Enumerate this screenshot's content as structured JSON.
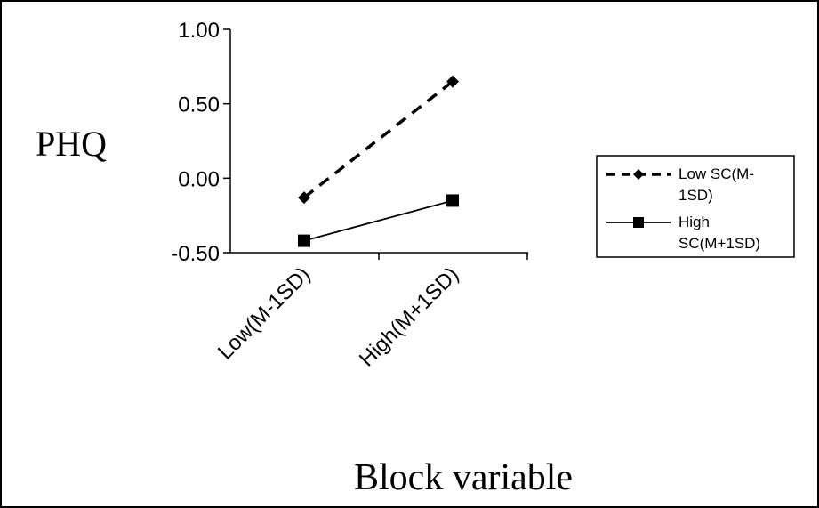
{
  "chart_data": {
    "type": "line",
    "title": "",
    "xlabel": "Block variable",
    "ylabel": "PHQ",
    "categories": [
      "Low(M-1SD)",
      "High(M+1SD)"
    ],
    "yticks": [
      "1.00",
      "0.50",
      "0.00",
      "-0.50"
    ],
    "ylim": [
      -0.5,
      1.0
    ],
    "grid": false,
    "legend_position": "right",
    "series": [
      {
        "name_lines": [
          "Low SC(M-",
          "1SD)"
        ],
        "values": [
          -0.13,
          0.65
        ],
        "marker": "diamond",
        "line_style": "dashed",
        "color": "#000000"
      },
      {
        "name_lines": [
          "High",
          "SC(M+1SD)"
        ],
        "values": [
          -0.42,
          -0.15
        ],
        "marker": "square",
        "line_style": "solid",
        "color": "#000000"
      }
    ]
  }
}
